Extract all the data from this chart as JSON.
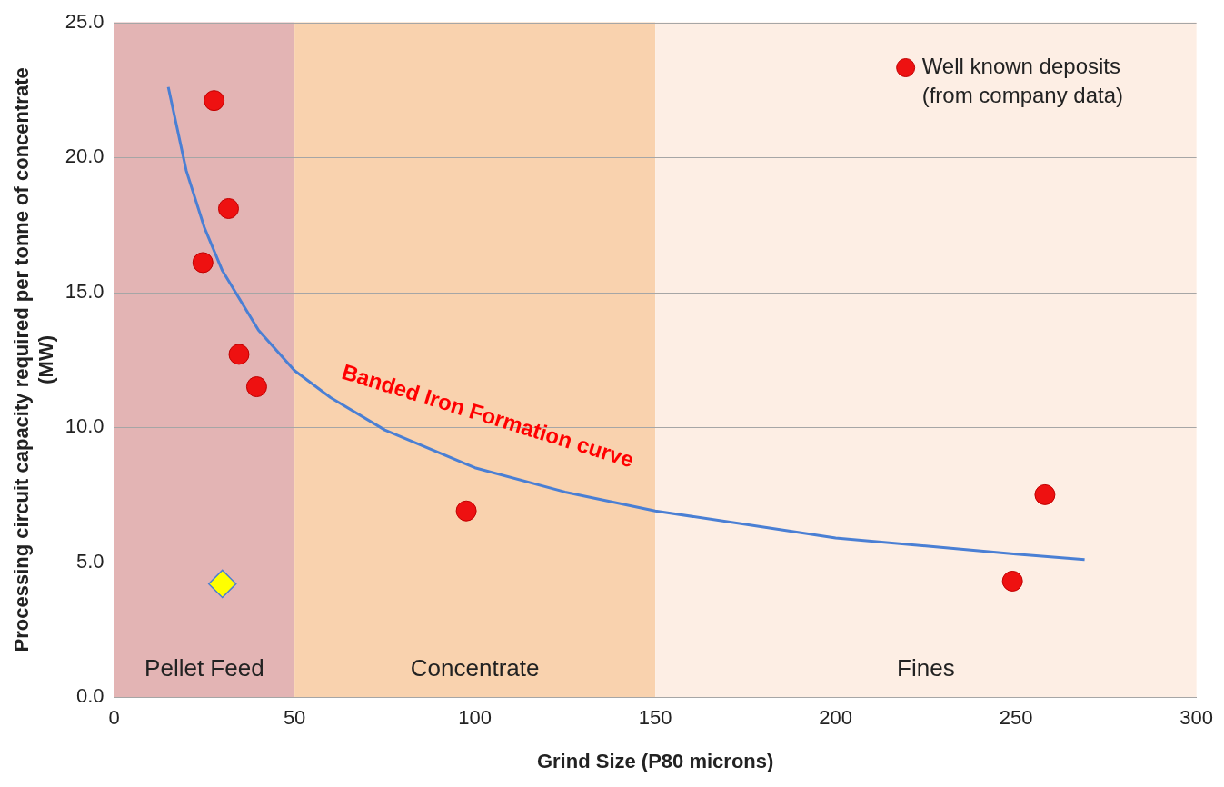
{
  "chart_data": {
    "type": "scatter",
    "xlabel": "Grind Size (P80 microns)",
    "ylabel": "Processing circuit capacity required per tonne of concentrate (MW)",
    "xlim": [
      0,
      300
    ],
    "xticks": [
      0,
      50,
      100,
      150,
      200,
      250,
      300
    ],
    "ylim": [
      0,
      25
    ],
    "yticks": [
      {
        "value": 0,
        "label": "0.0"
      },
      {
        "value": 5,
        "label": "5.0"
      },
      {
        "value": 10,
        "label": "10.0"
      },
      {
        "value": 15,
        "label": "15.0"
      },
      {
        "value": 20,
        "label": "20.0"
      },
      {
        "value": 25,
        "label": "25.0"
      }
    ],
    "grid": "y",
    "legend": "top right",
    "series": [
      {
        "type": "line",
        "color": "#4a7fd4",
        "marker": "none",
        "x": [
          15,
          20,
          25,
          30,
          40,
          50,
          60,
          75,
          100,
          125,
          150,
          175,
          200,
          225,
          250,
          269
        ],
        "values": [
          22.6,
          19.5,
          17.4,
          15.8,
          13.6,
          12.1,
          11.1,
          9.9,
          8.5,
          7.6,
          6.9,
          6.4,
          5.9,
          5.6,
          5.3,
          5.1
        ]
      },
      {
        "type": "scatter",
        "name": "Well known deposits (from company data)",
        "color": "#ee1111",
        "marker": "circle",
        "x": [
          27.7,
          31.7,
          24.6,
          34.6,
          39.5,
          97.6,
          249,
          258
        ],
        "values": [
          22.1,
          18.1,
          16.1,
          12.7,
          11.5,
          6.9,
          4.3,
          7.5
        ]
      },
      {
        "type": "scatter",
        "color": "#ffff00",
        "marker": "diamond",
        "x": [
          30
        ],
        "values": [
          4.2
        ]
      }
    ],
    "bands": [
      {
        "axis": "x",
        "from": 0,
        "to": 50,
        "label": "Pellet Feed",
        "color": "#e3b4b4"
      },
      {
        "axis": "x",
        "from": 50,
        "to": 150,
        "label": "Concentrate",
        "color": "#f9d2ae"
      },
      {
        "axis": "x",
        "from": 150,
        "to": 300,
        "label": "Fines",
        "color": "#fdeee4"
      }
    ],
    "annotations": [
      "Banded Iron Formation curve"
    ]
  }
}
